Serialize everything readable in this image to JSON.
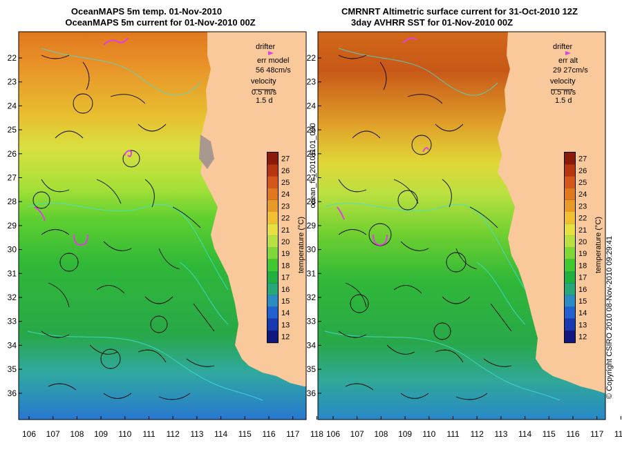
{
  "panels": [
    {
      "title1": "OceanMAPS 5m temp. 01-Nov-2010",
      "title2": "OceanMAPS 5m current for 01-Nov-2010 00Z",
      "legend": {
        "drifter": "drifter",
        "err_label": "err model",
        "err_value": "56 48cm/s",
        "velocity": "velocity",
        "vel_scale": "0.5 m/s",
        "vel_time": "1.5 d"
      }
    },
    {
      "title1": "CMRNRT Altimetric surface current for 31-Oct-2010 12Z",
      "title2": "3day AVHRR SST for 01-Nov-2010 00Z",
      "legend": {
        "drifter": "drifter",
        "err_label": "err alt",
        "err_value": "29 27cm/s",
        "velocity": "velocity",
        "vel_scale": "0.5 m/s",
        "vel_time": "1.5 d"
      }
    }
  ],
  "lat_ticks": [
    "22",
    "23",
    "24",
    "25",
    "26",
    "27",
    "28",
    "29",
    "30",
    "31",
    "32",
    "33",
    "34",
    "35",
    "36"
  ],
  "lon_ticks": [
    "106",
    "107",
    "108",
    "109",
    "110",
    "111",
    "112",
    "113",
    "114",
    "115",
    "116",
    "117",
    "118"
  ],
  "colorbar": {
    "values": [
      "27",
      "26",
      "25",
      "24",
      "23",
      "22",
      "21",
      "20",
      "19",
      "18",
      "17",
      "16",
      "15",
      "14",
      "13",
      "12"
    ],
    "label": "temperature (°C)",
    "colors": [
      "#8a1a0a",
      "#b8340e",
      "#d4561a",
      "#e0781e",
      "#e89a28",
      "#f0c030",
      "#e6e040",
      "#b8e040",
      "#80d838",
      "#40c830",
      "#20b040",
      "#28a878",
      "#2a8cc0",
      "#2060d0",
      "#1838b0",
      "#101880"
    ]
  },
  "side_text": {
    "file": "ocean_fc_20101101_000",
    "copyright": "© Copyright CSIRO 2010  08-Nov-2010 09:29:41"
  },
  "colors": {
    "land": "#f9c99c",
    "current_arrows": "#000000",
    "contours": "#40e0e0",
    "drifter": "#e040e0"
  }
}
